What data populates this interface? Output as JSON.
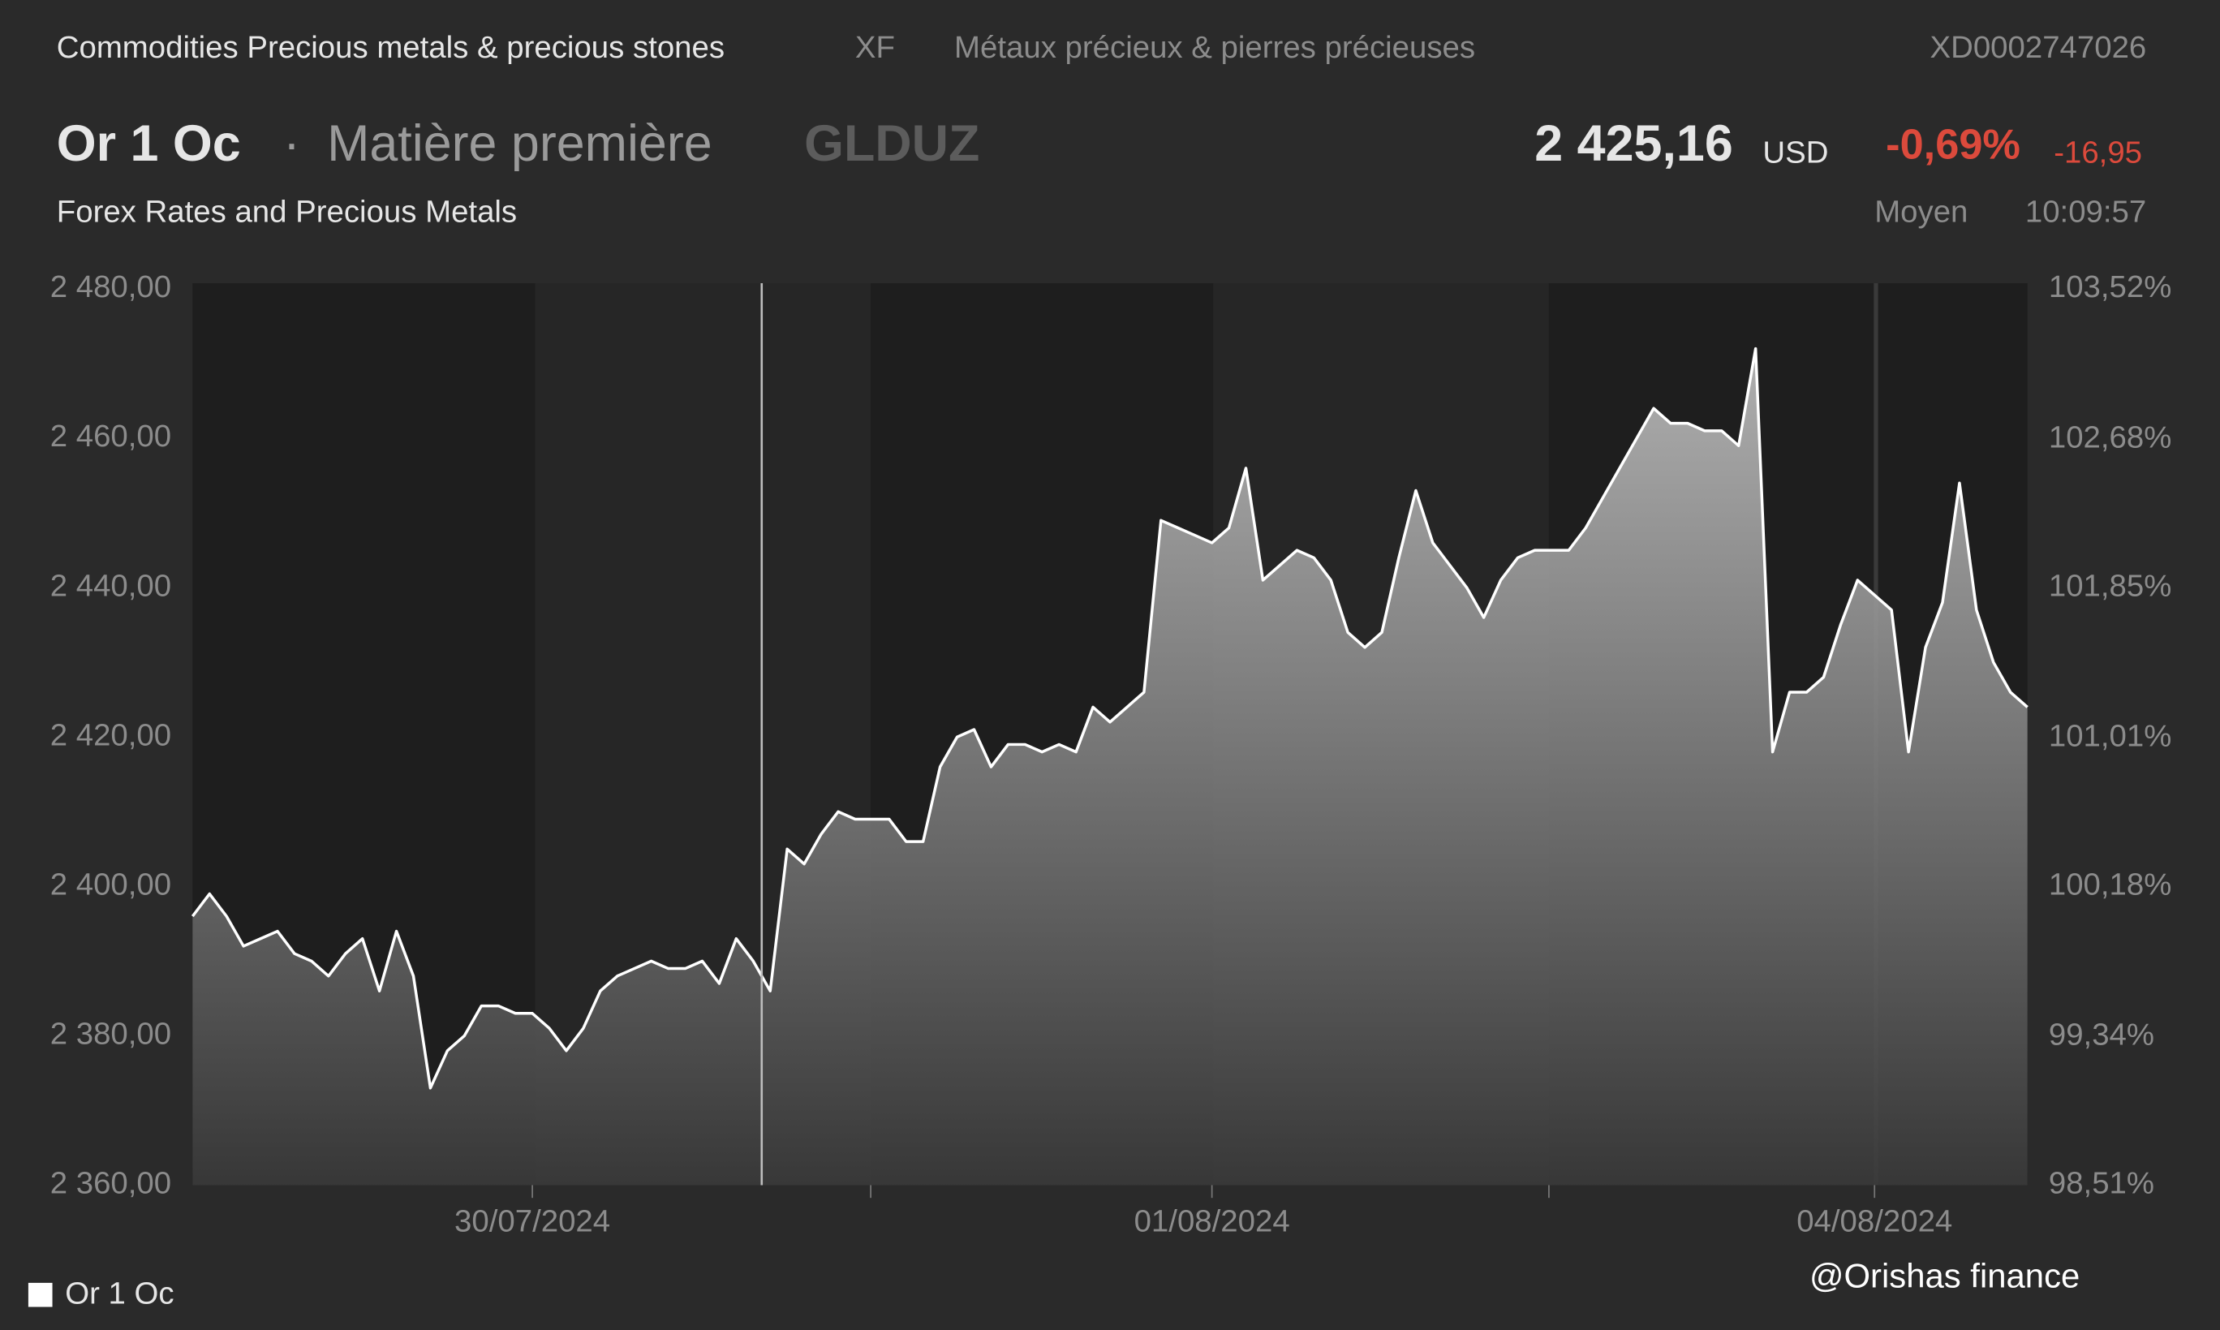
{
  "header": {
    "breadcrumb": "Commodities Precious metals & precious stones",
    "exchange": "XF",
    "category_fr": "Métaux précieux & pierres précieuses",
    "isin": "XD0002747026",
    "name": "Or 1 Oc",
    "separator": "·",
    "kind": "Matière première",
    "ticker": "GLDUZ",
    "price": "2 425,16",
    "currency": "USD",
    "change_pct": "-0,69%",
    "change_abs": "-16,95",
    "market": "Forex Rates and Precious Metals",
    "price_type": "Moyen",
    "time": "10:09:57"
  },
  "watermark": "@Orishas finance",
  "chart_data": {
    "type": "area",
    "categories": [
      null,
      null,
      null,
      null,
      null,
      null,
      null,
      null,
      null,
      null,
      null,
      null,
      null,
      null,
      null,
      null,
      null,
      null,
      null,
      null,
      "30/07/2024",
      null,
      null,
      null,
      null,
      null,
      null,
      null,
      null,
      null,
      null,
      null,
      null,
      null,
      null,
      null,
      null,
      null,
      null,
      null,
      null,
      null,
      null,
      null,
      null,
      null,
      null,
      null,
      null,
      null,
      null,
      null,
      null,
      null,
      null,
      null,
      null,
      null,
      null,
      null,
      "01/08/2024",
      null,
      null,
      null,
      null,
      null,
      null,
      null,
      null,
      null,
      null,
      null,
      null,
      null,
      null,
      null,
      null,
      null,
      null,
      null,
      null,
      null,
      null,
      null,
      null,
      null,
      null,
      null,
      null,
      null,
      null,
      null,
      null,
      null,
      null,
      null,
      null,
      null,
      null,
      "04/08/2024",
      null,
      null,
      null,
      null,
      null,
      null,
      null,
      null,
      null
    ],
    "series": [
      {
        "name": "Or 1 Oc",
        "color": "#ffffff",
        "values": [
          2396,
          2399,
          2396,
          2392,
          2393,
          2394,
          2391,
          2390,
          2388,
          2391,
          2393,
          2386,
          2394,
          2388,
          2373,
          2378,
          2380,
          2384,
          2384,
          2383,
          2383,
          2381,
          2378,
          2381,
          2386,
          2388,
          2389,
          2390,
          2389,
          2389,
          2390,
          2387,
          2393,
          2390,
          2386,
          2405,
          2403,
          2407,
          2410,
          2409,
          2409,
          2409,
          2406,
          2406,
          2416,
          2420,
          2421,
          2416,
          2419,
          2419,
          2418,
          2419,
          2418,
          2424,
          2422,
          2424,
          2426,
          2449,
          2448,
          2447,
          2446,
          2448,
          2456,
          2441,
          2443,
          2445,
          2444,
          2441,
          2434,
          2432,
          2434,
          2444,
          2453,
          2446,
          2443,
          2440,
          2436,
          2441,
          2444,
          2445,
          2445,
          2445,
          2448,
          2452,
          2456,
          2460,
          2464,
          2462,
          2462,
          2461,
          2461,
          2459,
          2472,
          2418,
          2426,
          2426,
          2428,
          2435,
          2441,
          2439,
          2437,
          2418,
          2432,
          2438,
          2454,
          2437,
          2430,
          2426,
          2424
        ]
      }
    ],
    "ylim": [
      2360,
      2480
    ],
    "yticks": [
      {
        "value": 2360,
        "label": "2 360,00"
      },
      {
        "value": 2380,
        "label": "2 380,00"
      },
      {
        "value": 2400,
        "label": "2 400,00"
      },
      {
        "value": 2420,
        "label": "2 420,00"
      },
      {
        "value": 2440,
        "label": "2 440,00"
      },
      {
        "value": 2460,
        "label": "2 460,00"
      },
      {
        "value": 2480,
        "label": "2 480,00"
      }
    ],
    "y2lim": [
      98.51,
      103.52
    ],
    "y2ticks": [
      {
        "value": 98.51,
        "label": "98,51%"
      },
      {
        "value": 99.34,
        "label": "99,34%"
      },
      {
        "value": 100.18,
        "label": "100,18%"
      },
      {
        "value": 101.01,
        "label": "101,01%"
      },
      {
        "value": 101.85,
        "label": "101,85%"
      },
      {
        "value": 102.68,
        "label": "102,68%"
      },
      {
        "value": 103.52,
        "label": "103,52%"
      }
    ],
    "grid": false
  }
}
